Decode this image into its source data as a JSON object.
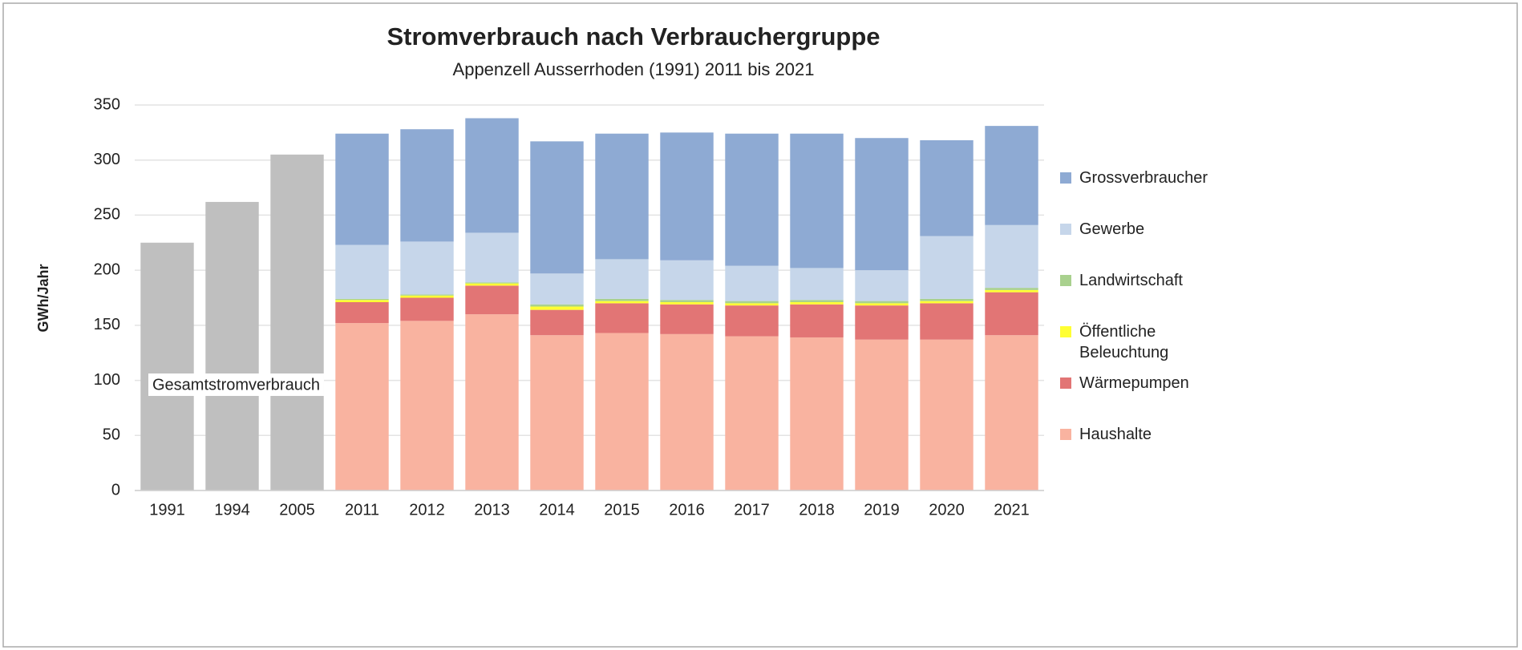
{
  "chart_data": {
    "type": "stacked_bar",
    "title": "Stromverbrauch nach Verbrauchergruppe",
    "subtitle": "Appenzell Ausserrhoden (1991) 2011 bis 2021",
    "y_label": "GWh/Jahr",
    "categories": [
      "1991",
      "1994",
      "2005",
      "2011",
      "2012",
      "2013",
      "2014",
      "2015",
      "2016",
      "2017",
      "2018",
      "2019",
      "2020",
      "2021"
    ],
    "ylim": [
      0,
      350
    ],
    "yticks": [
      0,
      50,
      100,
      150,
      200,
      250,
      300,
      350
    ],
    "grid": true,
    "legend": "right",
    "total_series": {
      "name": "Gesamtstromverbrauch",
      "color": "#bfbfbf",
      "values": [
        225,
        262,
        305,
        null,
        null,
        null,
        null,
        null,
        null,
        null,
        null,
        null,
        null,
        null
      ]
    },
    "series": [
      {
        "name": "Haushalte",
        "color": "#f9b3a0",
        "values": [
          null,
          null,
          null,
          152,
          154,
          160,
          141,
          143,
          142,
          140,
          139,
          137,
          137,
          141
        ]
      },
      {
        "name": "Wärmepumpen",
        "color": "#e27575",
        "values": [
          null,
          null,
          null,
          19,
          21,
          26,
          23,
          27,
          27,
          28,
          30,
          31,
          33,
          39
        ]
      },
      {
        "name": "Öffentliche Beleuchtung",
        "color": "#ffff33",
        "values": [
          null,
          null,
          null,
          2,
          2,
          2,
          3,
          2,
          2,
          2,
          2,
          2,
          2,
          2
        ]
      },
      {
        "name": "Landwirtschaft",
        "color": "#a9d18e",
        "values": [
          null,
          null,
          null,
          1,
          1,
          1,
          2,
          2,
          2,
          2,
          2,
          2,
          2,
          2
        ]
      },
      {
        "name": "Gewerbe",
        "color": "#c6d6ea",
        "values": [
          null,
          null,
          null,
          49,
          48,
          45,
          28,
          36,
          36,
          32,
          29,
          28,
          57,
          57
        ]
      },
      {
        "name": "Grossverbraucher",
        "color": "#8eaad3",
        "values": [
          null,
          null,
          null,
          101,
          102,
          104,
          120,
          114,
          116,
          120,
          122,
          120,
          87,
          90
        ]
      }
    ]
  }
}
